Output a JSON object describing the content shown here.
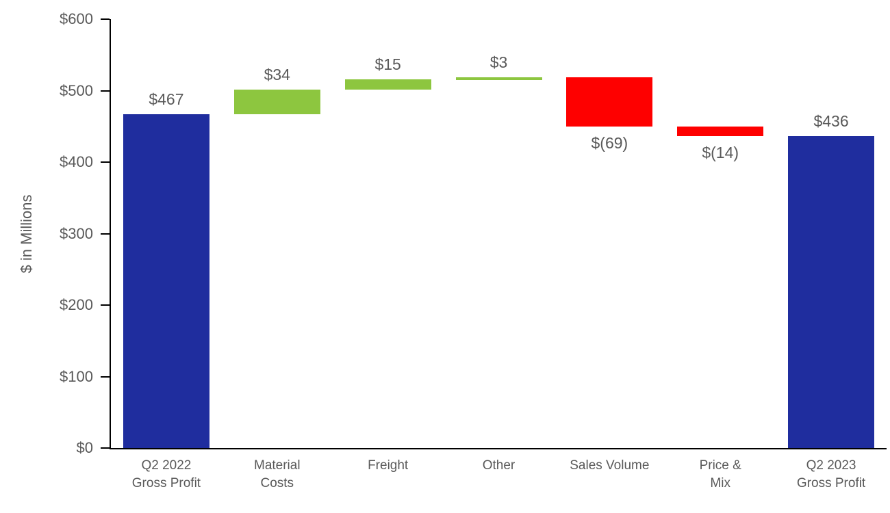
{
  "chart_data": {
    "type": "bar",
    "variant": "waterfall",
    "title": "",
    "xlabel": "",
    "ylabel": "$ in Millions",
    "ylim": [
      0,
      600
    ],
    "grid": false,
    "legend": false,
    "yticks": [
      {
        "value": 0,
        "label": "$0"
      },
      {
        "value": 100,
        "label": "$100"
      },
      {
        "value": 200,
        "label": "$200"
      },
      {
        "value": 300,
        "label": "$300"
      },
      {
        "value": 400,
        "label": "$400"
      },
      {
        "value": 500,
        "label": "$500"
      },
      {
        "value": 600,
        "label": "$600"
      }
    ],
    "colors": {
      "total": "#1f2d9e",
      "increase": "#8dc63f",
      "decrease": "#fe0000",
      "axis": "#000000",
      "label_text": "#595959"
    },
    "categories": [
      "Q2 2022 Gross Profit",
      "Material Costs",
      "Freight",
      "Other",
      "Sales Volume",
      "Price & Mix",
      "Q2 2023 Gross Profit"
    ],
    "bars": [
      {
        "category_lines": [
          "Q2 2022",
          "Gross Profit"
        ],
        "label": "$467",
        "value": 467,
        "start": 0,
        "end": 467,
        "kind": "total",
        "label_position": "above"
      },
      {
        "category_lines": [
          "Material",
          "Costs"
        ],
        "label": "$34",
        "value": 34,
        "start": 467,
        "end": 501,
        "kind": "increase",
        "label_position": "above"
      },
      {
        "category_lines": [
          "Freight"
        ],
        "label": "$15",
        "value": 15,
        "start": 501,
        "end": 516,
        "kind": "increase",
        "label_position": "above"
      },
      {
        "category_lines": [
          "Other"
        ],
        "label": "$3",
        "value": 3,
        "start": 516,
        "end": 519,
        "kind": "increase",
        "label_position": "above"
      },
      {
        "category_lines": [
          "Sales Volume"
        ],
        "label": "$(69)",
        "value": -69,
        "start": 519,
        "end": 450,
        "kind": "decrease",
        "label_position": "below"
      },
      {
        "category_lines": [
          "Price &",
          "Mix"
        ],
        "label": "$(14)",
        "value": -14,
        "start": 450,
        "end": 436,
        "kind": "decrease",
        "label_position": "below"
      },
      {
        "category_lines": [
          "Q2 2023",
          "Gross Profit"
        ],
        "label": "$436",
        "value": 436,
        "start": 0,
        "end": 436,
        "kind": "total",
        "label_position": "above"
      }
    ]
  }
}
